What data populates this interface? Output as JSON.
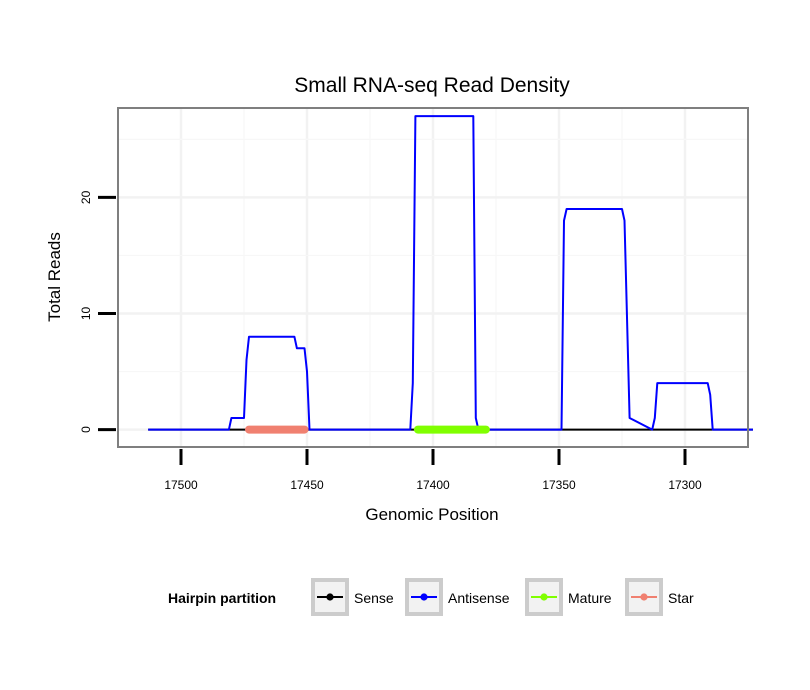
{
  "chart_data": {
    "type": "line",
    "title": "Small RNA-seq Read Density",
    "xlabel": "Genomic Position",
    "ylabel": "Total Reads",
    "xlim": [
      17525,
      17275
    ],
    "x_reversed": true,
    "ylim": [
      -1.5,
      27.7
    ],
    "x_ticks": [
      17500,
      17450,
      17400,
      17350,
      17300
    ],
    "x_tick_labels": [
      "17500",
      "17450",
      "17400",
      "17350",
      "17300"
    ],
    "y_ticks": [
      0,
      10,
      20
    ],
    "y_tick_labels": [
      "0",
      "10",
      "20"
    ],
    "grid": true,
    "legend_title": "Hairpin partition",
    "legend_position": "bottom",
    "series": [
      {
        "name": "Sense",
        "color": "#000000",
        "x": [
          17513,
          17273
        ],
        "y": [
          0,
          0
        ]
      },
      {
        "name": "Antisense",
        "color": "#0000ff",
        "x": [
          17513,
          17481,
          17480,
          17475,
          17474,
          17473,
          17455,
          17454,
          17451,
          17450,
          17449,
          17409,
          17408,
          17407,
          17384,
          17383,
          17382,
          17349,
          17348,
          17347,
          17325,
          17324,
          17322,
          17313,
          17312,
          17311,
          17291,
          17290,
          17289,
          17273
        ],
        "y": [
          0,
          0,
          1,
          1,
          6,
          8,
          8,
          7,
          7,
          5,
          0,
          0,
          4,
          27,
          27,
          1,
          0,
          0,
          18,
          19,
          19,
          18,
          1,
          0,
          1,
          4,
          4,
          3,
          0,
          0
        ]
      },
      {
        "name": "Mature",
        "color": "#80ff00",
        "x": [
          17406,
          17379
        ],
        "y": [
          0,
          0
        ]
      },
      {
        "name": "Star",
        "color": "#f08070",
        "x": [
          17473,
          17451
        ],
        "y": [
          0,
          0
        ]
      }
    ]
  }
}
